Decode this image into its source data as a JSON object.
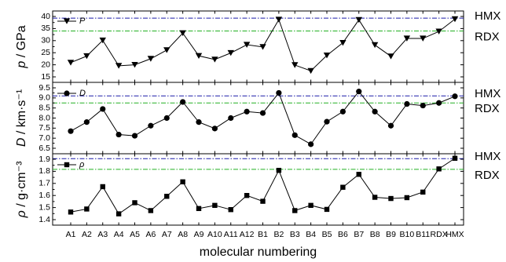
{
  "chart_data": {
    "type": "line",
    "xlabel": "molecular numbering",
    "categories": [
      "A1",
      "A2",
      "A3",
      "A4",
      "A5",
      "A6",
      "A7",
      "A8",
      "A9",
      "A10",
      "A11",
      "A12",
      "B1",
      "B2",
      "B3",
      "B4",
      "B5",
      "B6",
      "B7",
      "B8",
      "B9",
      "B10",
      "B11",
      "RDX",
      "HMX"
    ],
    "reference_lines": {
      "HMX_label": "HMX",
      "RDX_label": "RDX"
    },
    "panels": [
      {
        "id": "pressure",
        "ylabel_main": "p",
        "ylabel_unit": " / GPa",
        "ylim": [
          15,
          40
        ],
        "yticks": [
          15,
          20,
          25,
          30,
          35,
          40
        ],
        "ytick_labels": [
          "15",
          "20",
          "25",
          "30",
          "35",
          "40"
        ],
        "hmx": 39.3,
        "rdx": 34.0,
        "series": [
          {
            "name": "P",
            "marker": "triangle-down",
            "values": [
              20.9,
              23.6,
              30.1,
              19.6,
              20.0,
              22.5,
              26.1,
              33.1,
              23.7,
              22.2,
              24.9,
              28.3,
              27.4,
              38.7,
              19.9,
              17.5,
              23.9,
              29.1,
              38.6,
              28.2,
              23.5,
              30.9,
              30.9,
              33.8,
              38.9
            ]
          }
        ]
      },
      {
        "id": "velocity",
        "ylabel_main": "D",
        "ylabel_unit": " / km·s⁻¹",
        "ylim": [
          6.5,
          9.5
        ],
        "yticks": [
          6.5,
          7.0,
          7.5,
          8.0,
          8.5,
          9.0,
          9.5
        ],
        "ytick_labels": [
          "6.5",
          "7.0",
          "7.5",
          "8.0",
          "8.5",
          "9.0",
          "9.5"
        ],
        "hmx": 9.1,
        "rdx": 8.75,
        "series": [
          {
            "name": "D",
            "marker": "circle",
            "values": [
              7.35,
              7.8,
              8.45,
              7.18,
              7.12,
              7.62,
              8.0,
              8.8,
              7.8,
              7.48,
              8.0,
              8.32,
              8.25,
              9.25,
              7.15,
              6.7,
              7.82,
              8.32,
              9.32,
              8.32,
              7.62,
              8.7,
              8.62,
              8.75,
              9.08
            ]
          }
        ]
      },
      {
        "id": "density",
        "ylabel_main": "ρ",
        "ylabel_unit": " / g·cm⁻³",
        "ylim": [
          1.4,
          1.9
        ],
        "yticks": [
          1.4,
          1.5,
          1.6,
          1.7,
          1.8,
          1.9
        ],
        "ytick_labels": [
          "1.4",
          "1.5",
          "1.6",
          "1.7",
          "1.8",
          "1.9"
        ],
        "hmx": 1.905,
        "rdx": 1.816,
        "series": [
          {
            "name": "ρ",
            "marker": "square",
            "values": [
              1.463,
              1.488,
              1.673,
              1.448,
              1.54,
              1.475,
              1.593,
              1.713,
              1.492,
              1.518,
              1.483,
              1.6,
              1.552,
              1.808,
              1.475,
              1.518,
              1.485,
              1.668,
              1.775,
              1.585,
              1.575,
              1.582,
              1.628,
              1.82,
              1.908
            ]
          }
        ]
      }
    ]
  }
}
